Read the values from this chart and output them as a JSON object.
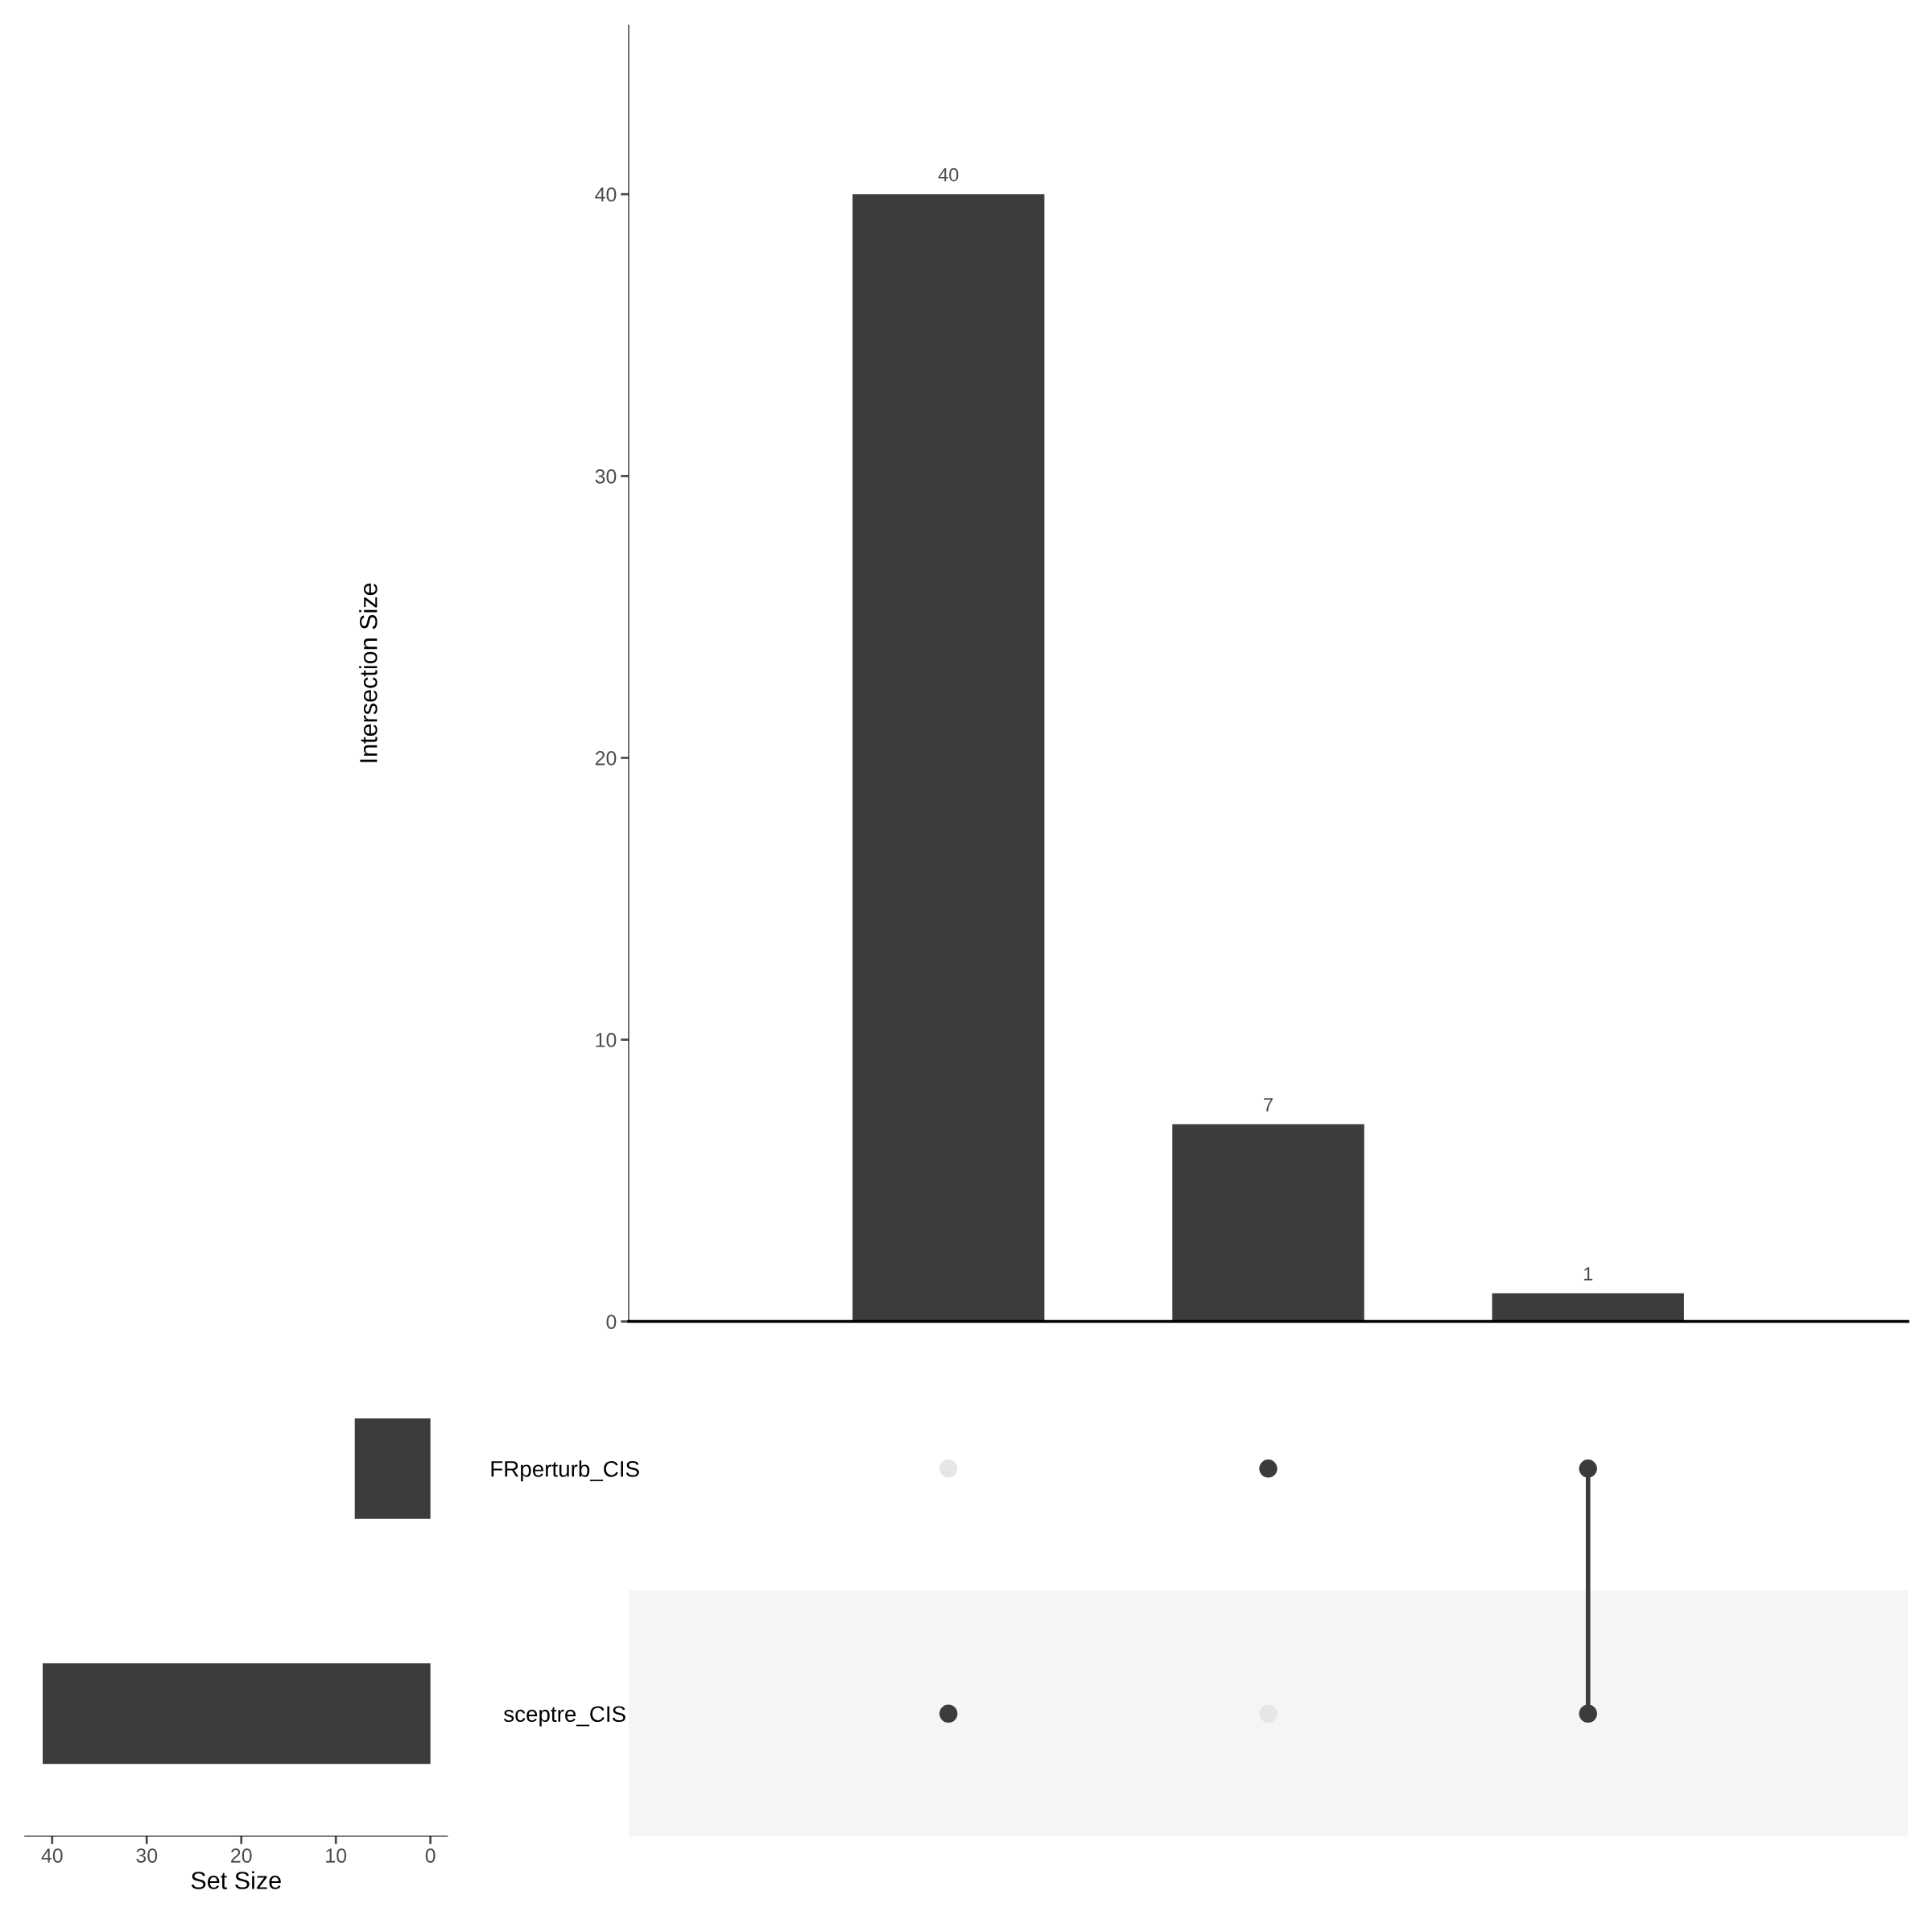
{
  "chart_data": [
    {
      "type": "bar",
      "categories": [
        null,
        null,
        null
      ],
      "values": [
        40,
        7,
        1
      ],
      "color": "#3c3c3c",
      "ylabel": "Intersection Size",
      "ylim": [
        0,
        46
      ],
      "yticks": [
        0,
        10,
        20,
        30,
        40
      ],
      "data_labels": true
    },
    {
      "type": "bar",
      "orientation": "horizontal",
      "categories": [
        "FRperturb_CIS",
        "sceptre_CIS"
      ],
      "values": [
        8,
        41
      ],
      "color": "#3c3c3c",
      "xlabel": "Set Size",
      "xlim": [
        42.9,
        -1.8
      ],
      "xticks": [
        40,
        30,
        20,
        10,
        0
      ]
    }
  ]
}
